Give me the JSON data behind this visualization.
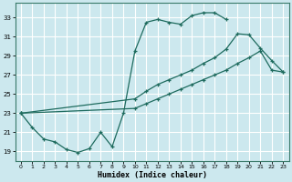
{
  "xlabel": "Humidex (Indice chaleur)",
  "xlim": [
    -0.5,
    23.5
  ],
  "ylim": [
    18.0,
    34.5
  ],
  "yticks": [
    19,
    21,
    23,
    25,
    27,
    29,
    31,
    33
  ],
  "xticks": [
    0,
    1,
    2,
    3,
    4,
    5,
    6,
    7,
    8,
    9,
    10,
    11,
    12,
    13,
    14,
    15,
    16,
    17,
    18,
    19,
    20,
    21,
    22,
    23
  ],
  "bg_color": "#cce8ee",
  "grid_color": "#ffffff",
  "line_color": "#1e6b5e",
  "line1_x": [
    0,
    1,
    2,
    3,
    4,
    5,
    6,
    7,
    8,
    9,
    10,
    11,
    12,
    13,
    14,
    15,
    16,
    17,
    18
  ],
  "line1_y": [
    23.0,
    21.5,
    20.3,
    20.0,
    19.2,
    18.9,
    19.3,
    21.0,
    19.5,
    23.0,
    29.5,
    32.5,
    32.8,
    32.5,
    32.3,
    33.2,
    33.5,
    33.5,
    32.8
  ],
  "line2_x": [
    0,
    10,
    11,
    12,
    13,
    14,
    15,
    16,
    17,
    18,
    19,
    20,
    21,
    22,
    23
  ],
  "line2_y": [
    23.0,
    23.5,
    24.0,
    24.5,
    25.0,
    25.5,
    26.0,
    26.5,
    27.0,
    27.5,
    28.2,
    28.8,
    29.5,
    27.5,
    27.3
  ],
  "line3_x": [
    0,
    10,
    11,
    12,
    13,
    14,
    15,
    16,
    17,
    18,
    19,
    20,
    21,
    22,
    23
  ],
  "line3_y": [
    23.0,
    24.5,
    25.3,
    26.0,
    26.5,
    27.0,
    27.5,
    28.2,
    28.8,
    29.7,
    31.3,
    31.2,
    29.8,
    28.5,
    27.3
  ]
}
